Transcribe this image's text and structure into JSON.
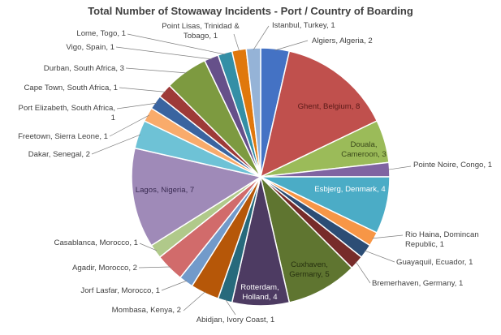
{
  "chart_data": {
    "type": "pie",
    "title": "Total Number of Stowaway Incidents - Port / Country of Boarding",
    "slices": [
      {
        "label": "Algiers, Algeria, 2",
        "value": 2,
        "color": "#4472C4"
      },
      {
        "label": "Ghent, Belgium, 8",
        "value": 8,
        "color": "#C0504D"
      },
      {
        "label": "Douala, Cameroon, 3",
        "value": 3,
        "color": "#9BBB59"
      },
      {
        "label": "Pointe Noire, Congo, 1",
        "value": 1,
        "color": "#8064A2"
      },
      {
        "label": "Esbjerg, Denmark, 4",
        "value": 4,
        "color": "#4BACC6"
      },
      {
        "label": "Rio Haina, Domincan Republic, 1",
        "value": 1,
        "color": "#F79646"
      },
      {
        "label": "Guayaquil, Ecuador, 1",
        "value": 1,
        "color": "#2C4D75"
      },
      {
        "label": "Bremerhaven, Germany, 1",
        "value": 1,
        "color": "#772C2A"
      },
      {
        "label": "Cuxhaven, Germany, 5",
        "value": 5,
        "color": "#5F7530"
      },
      {
        "label": "Rotterdam, Holland, 4",
        "value": 4,
        "color": "#4D3B62"
      },
      {
        "label": "Abidjan, Ivory Coast, 1",
        "value": 1,
        "color": "#276A7C"
      },
      {
        "label": "Mombasa, Kenya, 2",
        "value": 2,
        "color": "#B65708"
      },
      {
        "label": "Jorf Lasfar, Morocco, 1",
        "value": 1,
        "color": "#729ACA"
      },
      {
        "label": "Agadir, Morocco, 2",
        "value": 2,
        "color": "#D16B6B"
      },
      {
        "label": "Casablanca, Morocco, 1",
        "value": 1,
        "color": "#B0C98A"
      },
      {
        "label": "Lagos, Nigeria, 7",
        "value": 7,
        "color": "#9F8AB8"
      },
      {
        "label": "Dakar, Senegal, 2",
        "value": 2,
        "color": "#6EC2D6"
      },
      {
        "label": "Freetown, Sierra Leone, 1",
        "value": 1,
        "color": "#F9AB6B"
      },
      {
        "label": "Port Elizabeth, South Africa, 1",
        "value": 1,
        "color": "#3A64A0"
      },
      {
        "label": "Cape Town, South Africa, 1",
        "value": 1,
        "color": "#9E3A38"
      },
      {
        "label": "Durban, South Africa, 3",
        "value": 3,
        "color": "#7D9A40"
      },
      {
        "label": "Vigo, Spain, 1",
        "value": 1,
        "color": "#66508A"
      },
      {
        "label": "Lome, Togo, 1",
        "value": 1,
        "color": "#348FA6"
      },
      {
        "label": "Point Lisas, Trinidad & Tobago, 1",
        "value": 1,
        "color": "#E0780D"
      },
      {
        "label": "Istanbul, Turkey, 1",
        "value": 1,
        "color": "#95B3D7"
      }
    ],
    "legend": "none",
    "data_labels": "category, value"
  }
}
